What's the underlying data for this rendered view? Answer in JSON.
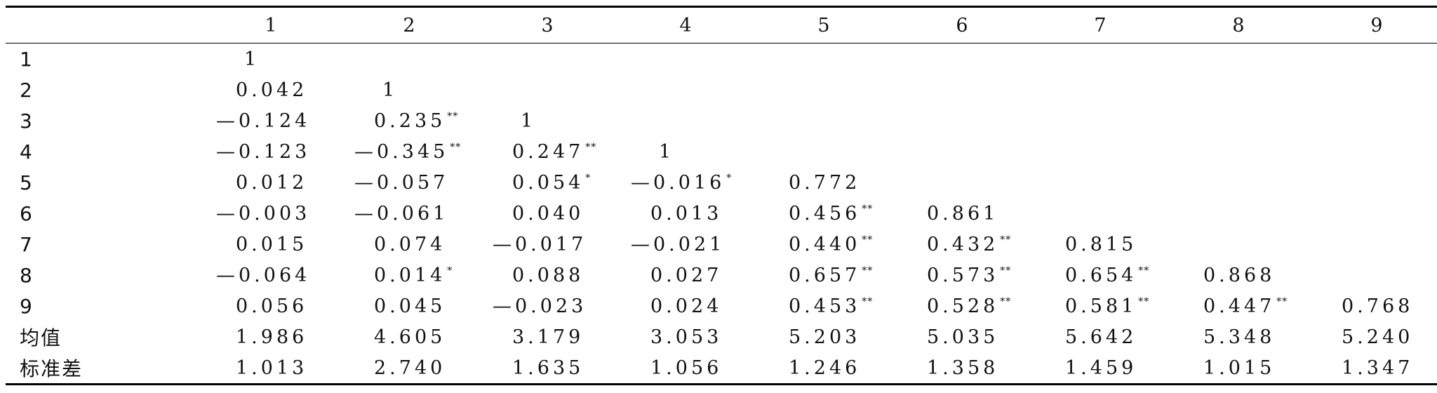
{
  "columns": [
    "",
    "1",
    "2",
    "3",
    "4",
    "5",
    "6",
    "7",
    "8",
    "9"
  ],
  "rows": [
    {
      "label": "1",
      "cells": [
        {
          "v": "1"
        }
      ]
    },
    {
      "label": "2",
      "cells": [
        {
          "v": "0.042"
        },
        {
          "v": "1"
        }
      ]
    },
    {
      "label": "3",
      "cells": [
        {
          "v": "—0.124"
        },
        {
          "v": "0.235",
          "sig": "**"
        },
        {
          "v": "1"
        }
      ]
    },
    {
      "label": "4",
      "cells": [
        {
          "v": "—0.123"
        },
        {
          "v": "—0.345",
          "sig": "**"
        },
        {
          "v": "0.247",
          "sig": "**"
        },
        {
          "v": "1"
        }
      ]
    },
    {
      "label": "5",
      "cells": [
        {
          "v": "0.012"
        },
        {
          "v": "—0.057"
        },
        {
          "v": "0.054",
          "sig": "*"
        },
        {
          "v": "—0.016",
          "sig": "*"
        },
        {
          "v": "0.772"
        }
      ]
    },
    {
      "label": "6",
      "cells": [
        {
          "v": "—0.003"
        },
        {
          "v": "—0.061"
        },
        {
          "v": "0.040"
        },
        {
          "v": "0.013"
        },
        {
          "v": "0.456",
          "sig": "**"
        },
        {
          "v": "0.861"
        }
      ]
    },
    {
      "label": "7",
      "cells": [
        {
          "v": "0.015"
        },
        {
          "v": "0.074"
        },
        {
          "v": "—0.017"
        },
        {
          "v": "—0.021"
        },
        {
          "v": "0.440",
          "sig": "**"
        },
        {
          "v": "0.432",
          "sig": "**"
        },
        {
          "v": "0.815"
        }
      ]
    },
    {
      "label": "8",
      "cells": [
        {
          "v": "—0.064"
        },
        {
          "v": "0.014",
          "sig": "*"
        },
        {
          "v": "0.088"
        },
        {
          "v": "0.027"
        },
        {
          "v": "0.657",
          "sig": "**"
        },
        {
          "v": "0.573",
          "sig": "**"
        },
        {
          "v": "0.654",
          "sig": "**"
        },
        {
          "v": "0.868"
        }
      ]
    },
    {
      "label": "9",
      "cells": [
        {
          "v": "0.056"
        },
        {
          "v": "0.045"
        },
        {
          "v": "—0.023"
        },
        {
          "v": "0.024"
        },
        {
          "v": "0.453",
          "sig": "**"
        },
        {
          "v": "0.528",
          "sig": "**"
        },
        {
          "v": "0.581",
          "sig": "**"
        },
        {
          "v": "0.447",
          "sig": "**"
        },
        {
          "v": "0.768"
        }
      ]
    },
    {
      "label": "均值",
      "cells": [
        {
          "v": "1.986"
        },
        {
          "v": "4.605"
        },
        {
          "v": "3.179"
        },
        {
          "v": "3.053"
        },
        {
          "v": "5.203"
        },
        {
          "v": "5.035"
        },
        {
          "v": "5.642"
        },
        {
          "v": "5.348"
        },
        {
          "v": "5.240"
        }
      ]
    },
    {
      "label": "标准差",
      "cells": [
        {
          "v": "1.013"
        },
        {
          "v": "2.740"
        },
        {
          "v": "1.635"
        },
        {
          "v": "1.056"
        },
        {
          "v": "1.246"
        },
        {
          "v": "1.358"
        },
        {
          "v": "1.459"
        },
        {
          "v": "1.015"
        },
        {
          "v": "1.347"
        }
      ]
    }
  ]
}
